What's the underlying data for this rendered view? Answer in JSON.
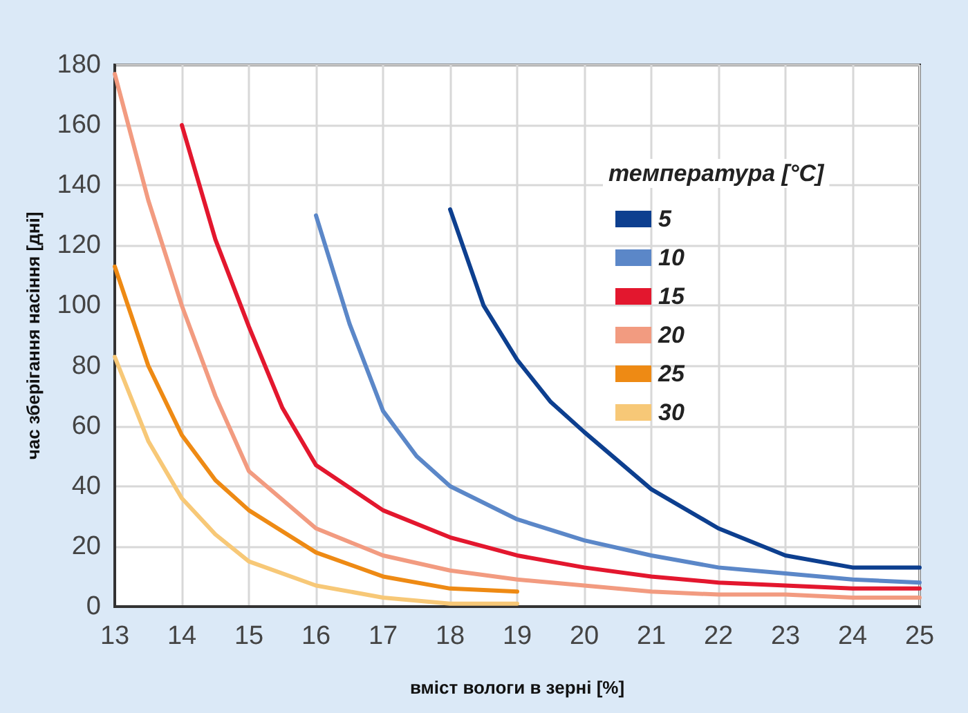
{
  "chart_data": {
    "type": "line",
    "xlabel": "вміст вологи в зерні [%]",
    "ylabel": "час зберігання насіння [дні]",
    "legend_title": "температура [°C]",
    "legend": "top right",
    "grid": true,
    "marker": "none",
    "line_style": "solid",
    "xlim": [
      13,
      25
    ],
    "xticks": [
      13,
      14,
      15,
      16,
      17,
      18,
      19,
      20,
      21,
      22,
      23,
      24,
      25
    ],
    "ylim": [
      0,
      180
    ],
    "yticks": [
      0,
      20,
      40,
      60,
      80,
      100,
      120,
      140,
      160,
      180
    ],
    "series": [
      {
        "name": "5",
        "color": "#0d3f8f",
        "x": [
          18,
          18.5,
          19,
          19.5,
          20,
          21,
          22,
          23,
          24,
          25
        ],
        "values": [
          132,
          100,
          82,
          68,
          58,
          39,
          26,
          17,
          13,
          13
        ]
      },
      {
        "name": "10",
        "color": "#5b87c8",
        "x": [
          16,
          16.5,
          17,
          17.5,
          18,
          19,
          20,
          21,
          22,
          23,
          24,
          25
        ],
        "values": [
          130,
          94,
          65,
          50,
          40,
          29,
          22,
          17,
          13,
          11,
          9,
          8
        ]
      },
      {
        "name": "15",
        "color": "#e3172e",
        "x": [
          14,
          14.5,
          15,
          15.5,
          16,
          17,
          18,
          19,
          20,
          21,
          22,
          23,
          24,
          25
        ],
        "values": [
          160,
          122,
          93,
          66,
          47,
          32,
          23,
          17,
          13,
          10,
          8,
          7,
          6,
          6
        ]
      },
      {
        "name": "20",
        "color": "#f29b80",
        "x": [
          13,
          13.5,
          14,
          14.5,
          15,
          16,
          17,
          18,
          19,
          20,
          21,
          22,
          23,
          24,
          25
        ],
        "values": [
          177,
          135,
          100,
          70,
          45,
          26,
          17,
          12,
          9,
          7,
          5,
          4,
          4,
          3,
          3
        ]
      },
      {
        "name": "25",
        "color": "#ee8a14",
        "x": [
          13,
          13.5,
          14,
          14.5,
          15,
          16,
          17,
          18,
          19
        ],
        "values": [
          113,
          80,
          57,
          42,
          32,
          18,
          10,
          6,
          5
        ]
      },
      {
        "name": "30",
        "color": "#f7c877",
        "x": [
          13,
          13.5,
          14,
          14.5,
          15,
          16,
          17,
          18,
          19
        ],
        "values": [
          83,
          55,
          36,
          24,
          15,
          7,
          3,
          1,
          1
        ]
      }
    ]
  }
}
